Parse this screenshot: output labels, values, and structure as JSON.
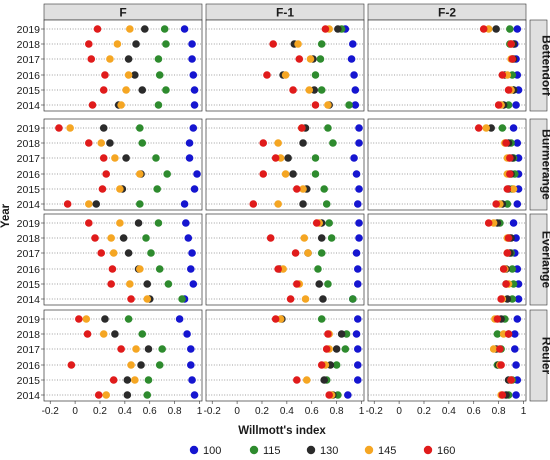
{
  "chart_data": {
    "type": "scatter",
    "xlabel": "Willmott's index",
    "ylabel": "Year",
    "xlim": [
      -0.25,
      1.02
    ],
    "x_ticks": [
      "-0.2",
      "0",
      "0.2",
      "0.4",
      "0.6",
      "0.8",
      "1"
    ],
    "x_tick_values": [
      -0.2,
      0,
      0.2,
      0.4,
      0.6,
      0.8,
      1.0
    ],
    "years": [
      "2019",
      "2018",
      "2017",
      "2016",
      "2015",
      "2014"
    ],
    "columns": [
      "F",
      "F-1",
      "F-2"
    ],
    "rows": [
      "Bettendorf",
      "Burmerange",
      "Everlange",
      "Reuler"
    ],
    "legend_position": "bottom",
    "series": [
      {
        "name": "100",
        "color": "#1515d0"
      },
      {
        "name": "115",
        "color": "#2e8b2e"
      },
      {
        "name": "130",
        "color": "#2b2b2b"
      },
      {
        "name": "145",
        "color": "#f5a623"
      },
      {
        "name": "160",
        "color": "#e01b1b"
      }
    ],
    "panels": {
      "F": {
        "Bettendorf": {
          "2019": [
            0.88,
            0.72,
            0.56,
            0.44,
            0.18
          ],
          "2018": [
            0.94,
            0.73,
            0.49,
            0.34,
            0.11
          ],
          "2017": [
            0.94,
            0.67,
            0.43,
            0.28,
            0.13
          ],
          "2016": [
            0.95,
            0.68,
            0.48,
            0.43,
            0.24
          ],
          "2015": [
            0.96,
            0.73,
            0.54,
            0.41,
            0.23
          ],
          "2014": [
            0.96,
            0.67,
            0.35,
            0.37,
            0.14
          ]
        },
        "Burmerange": {
          "2019": [
            0.95,
            0.52,
            0.23,
            -0.04,
            -0.13
          ],
          "2018": [
            0.92,
            0.54,
            0.28,
            0.21,
            0.11
          ],
          "2017": [
            0.92,
            0.65,
            0.41,
            0.32,
            0.23
          ],
          "2016": [
            0.98,
            0.74,
            0.53,
            0.52,
            0.25
          ],
          "2015": [
            0.96,
            0.66,
            0.38,
            0.36,
            0.22
          ],
          "2014": [
            0.88,
            0.52,
            0.17,
            0.11,
            -0.06
          ]
        },
        "Everlange": {
          "2019": [
            0.89,
            0.67,
            0.51,
            0.36,
            0.11
          ],
          "2018": [
            0.91,
            0.57,
            0.39,
            0.29,
            0.16
          ],
          "2017": [
            0.94,
            0.61,
            0.43,
            0.31,
            0.21
          ],
          "2016": [
            0.93,
            0.68,
            0.51,
            0.52,
            0.3
          ],
          "2015": [
            0.95,
            0.75,
            0.58,
            0.44,
            0.29
          ],
          "2014": [
            0.88,
            0.86,
            0.6,
            0.58,
            0.45
          ]
        },
        "Reuler": {
          "2019": [
            0.84,
            0.43,
            0.24,
            0.09,
            0.03
          ],
          "2018": [
            0.9,
            0.54,
            0.32,
            0.23,
            0.1
          ],
          "2017": [
            0.93,
            0.7,
            0.59,
            0.49,
            0.37
          ],
          "2016": [
            0.93,
            0.68,
            0.53,
            0.45,
            -0.03
          ],
          "2015": [
            0.94,
            0.59,
            0.42,
            0.48,
            0.31
          ],
          "2014": [
            0.96,
            0.58,
            0.42,
            0.25,
            0.19
          ]
        }
      },
      "F-1": {
        "Bettendorf": {
          "2019": [
            0.87,
            0.84,
            0.81,
            0.74,
            0.71
          ],
          "2018": [
            0.93,
            0.68,
            0.46,
            0.49,
            0.29
          ],
          "2017": [
            0.92,
            0.67,
            0.61,
            0.59,
            0.5
          ],
          "2016": [
            0.94,
            0.63,
            0.37,
            0.39,
            0.24
          ],
          "2015": [
            0.95,
            0.68,
            0.62,
            0.58,
            0.45
          ],
          "2014": [
            0.95,
            0.9,
            0.74,
            0.73,
            0.63
          ]
        },
        "Burmerange": {
          "2019": [
            0.98,
            0.73,
            0.55,
            0.52,
            0.52
          ],
          "2018": [
            0.98,
            0.77,
            0.53,
            0.33,
            0.21
          ],
          "2017": [
            0.94,
            0.63,
            0.41,
            0.35,
            0.31
          ],
          "2016": [
            0.96,
            0.63,
            0.45,
            0.39,
            0.21
          ],
          "2015": [
            0.98,
            0.7,
            0.56,
            0.53,
            0.48
          ],
          "2014": [
            0.97,
            0.72,
            0.53,
            0.33,
            0.13
          ]
        },
        "Everlange": {
          "2019": [
            0.98,
            0.74,
            0.68,
            0.66,
            0.64
          ],
          "2018": [
            0.98,
            0.76,
            0.68,
            0.54,
            0.27
          ],
          "2017": [
            0.96,
            0.68,
            0.57,
            0.57,
            0.47
          ],
          "2016": [
            0.97,
            0.65,
            0.34,
            0.37,
            0.33
          ],
          "2015": [
            0.97,
            0.73,
            0.66,
            0.5,
            0.48
          ],
          "2014": [
            0.93,
            0.93,
            0.69,
            0.55,
            0.43
          ]
        },
        "Reuler": {
          "2019": [
            0.97,
            0.68,
            0.36,
            0.35,
            0.31
          ],
          "2018": [
            0.96,
            0.88,
            0.84,
            0.74,
            0.73
          ],
          "2017": [
            0.97,
            0.87,
            0.8,
            0.74,
            0.72
          ],
          "2016": [
            0.97,
            0.8,
            0.75,
            0.71,
            0.68
          ],
          "2015": [
            0.97,
            0.72,
            0.7,
            0.56,
            0.48
          ],
          "2014": [
            0.89,
            0.81,
            0.77,
            0.76,
            0.74
          ]
        }
      },
      "F-2": {
        "Bettendorf": {
          "2019": [
            0.95,
            0.89,
            0.78,
            0.72,
            0.68
          ],
          "2018": [
            0.93,
            0.89,
            0.92,
            0.9,
            0.9
          ],
          "2017": [
            0.94,
            0.91,
            0.92,
            0.9,
            0.91
          ],
          "2016": [
            0.95,
            0.91,
            0.85,
            0.87,
            0.83
          ],
          "2015": [
            0.96,
            0.92,
            0.92,
            0.9,
            0.88
          ],
          "2014": [
            0.94,
            0.88,
            0.84,
            0.82,
            0.8
          ]
        },
        "Burmerange": {
          "2019": [
            0.92,
            0.83,
            0.74,
            0.7,
            0.64
          ],
          "2018": [
            0.95,
            0.9,
            0.88,
            0.85,
            0.86
          ],
          "2017": [
            0.96,
            0.92,
            0.91,
            0.87,
            0.89
          ],
          "2016": [
            0.96,
            0.93,
            0.9,
            0.87,
            0.89
          ],
          "2015": [
            0.96,
            0.91,
            0.88,
            0.92,
            0.87
          ],
          "2014": [
            0.95,
            0.87,
            0.83,
            0.81,
            0.78
          ]
        },
        "Everlange": {
          "2019": [
            0.92,
            0.81,
            0.79,
            0.76,
            0.72
          ],
          "2018": [
            0.94,
            0.89,
            0.9,
            0.87,
            0.88
          ],
          "2017": [
            0.93,
            0.9,
            0.89,
            0.87,
            0.87
          ],
          "2016": [
            0.95,
            0.91,
            0.86,
            0.85,
            0.84
          ],
          "2015": [
            0.96,
            0.92,
            0.86,
            0.88,
            0.86
          ],
          "2014": [
            0.96,
            0.91,
            0.87,
            0.83,
            0.82
          ]
        },
        "Reuler": {
          "2019": [
            0.95,
            0.85,
            0.82,
            0.77,
            0.79
          ],
          "2018": [
            0.93,
            0.79,
            0.88,
            0.84,
            0.88
          ],
          "2017": [
            0.93,
            0.82,
            0.78,
            0.76,
            0.81
          ],
          "2016": [
            0.94,
            0.79,
            0.8,
            0.81,
            0.82
          ],
          "2015": [
            0.95,
            0.91,
            0.88,
            0.9,
            0.9
          ],
          "2014": [
            0.94,
            0.88,
            0.86,
            0.82,
            0.83
          ]
        }
      }
    }
  }
}
